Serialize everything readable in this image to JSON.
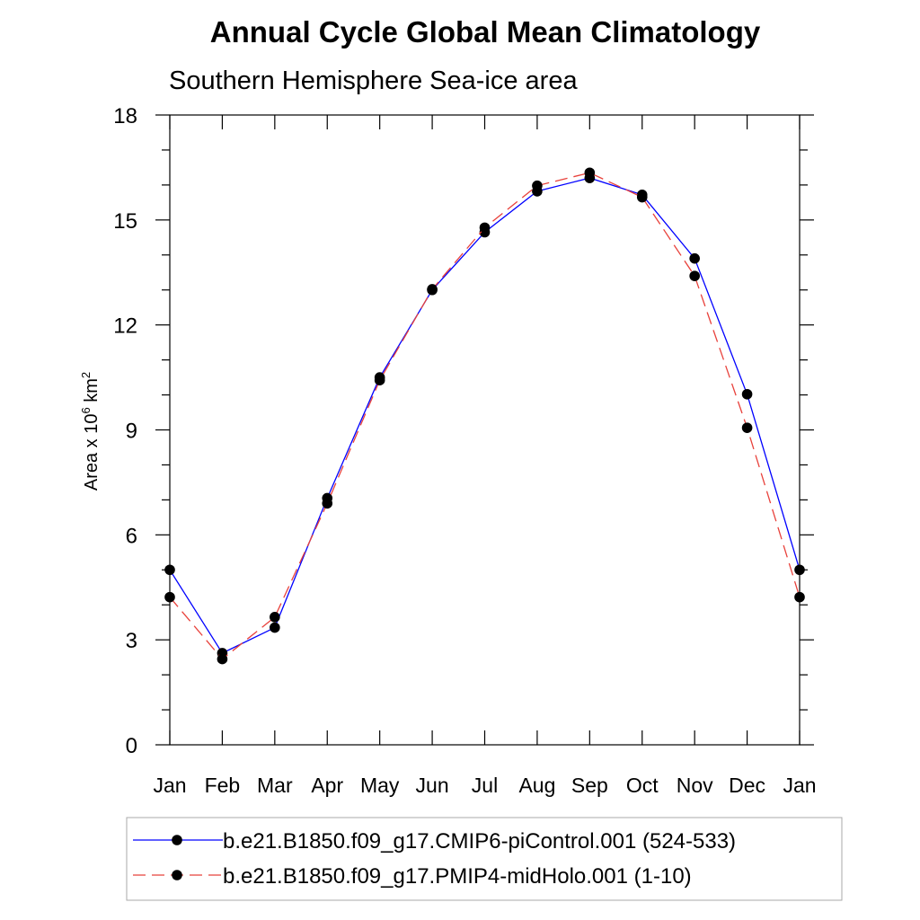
{
  "chart_data": {
    "type": "line",
    "title": "Annual Cycle Global Mean Climatology",
    "subtitle": "Southern Hemisphere Sea-ice area",
    "ylabel": {
      "prefix": "Area x 10",
      "exp1": "6",
      "mid": " km",
      "exp2": "2"
    },
    "xlabel": "",
    "categories": [
      "Jan",
      "Feb",
      "Mar",
      "Apr",
      "May",
      "Jun",
      "Jul",
      "Aug",
      "Sep",
      "Oct",
      "Nov",
      "Dec",
      "Jan"
    ],
    "ylim": [
      0,
      18
    ],
    "yticks": [
      0,
      3,
      6,
      9,
      12,
      15,
      18
    ],
    "grid": false,
    "legend_position": "bottom",
    "series": [
      {
        "name": "b.e21.B1850.f09_g17.CMIP6-piControl.001 (524-533)",
        "color": "#0000ff",
        "line_style": "solid",
        "marker": "filled-circle",
        "values": [
          5.0,
          2.62,
          3.35,
          7.05,
          10.5,
          13.0,
          14.65,
          15.82,
          16.2,
          15.72,
          13.9,
          10.02,
          5.0
        ]
      },
      {
        "name": "b.e21.B1850.f09_g17.PMIP4-midHolo.001 (1-10)",
        "color": "#e8413b",
        "line_style": "dashed",
        "marker": "filled-circle",
        "values": [
          4.22,
          2.45,
          3.65,
          6.9,
          10.42,
          13.02,
          14.78,
          15.98,
          16.35,
          15.65,
          13.4,
          9.06,
          4.22
        ]
      }
    ]
  }
}
